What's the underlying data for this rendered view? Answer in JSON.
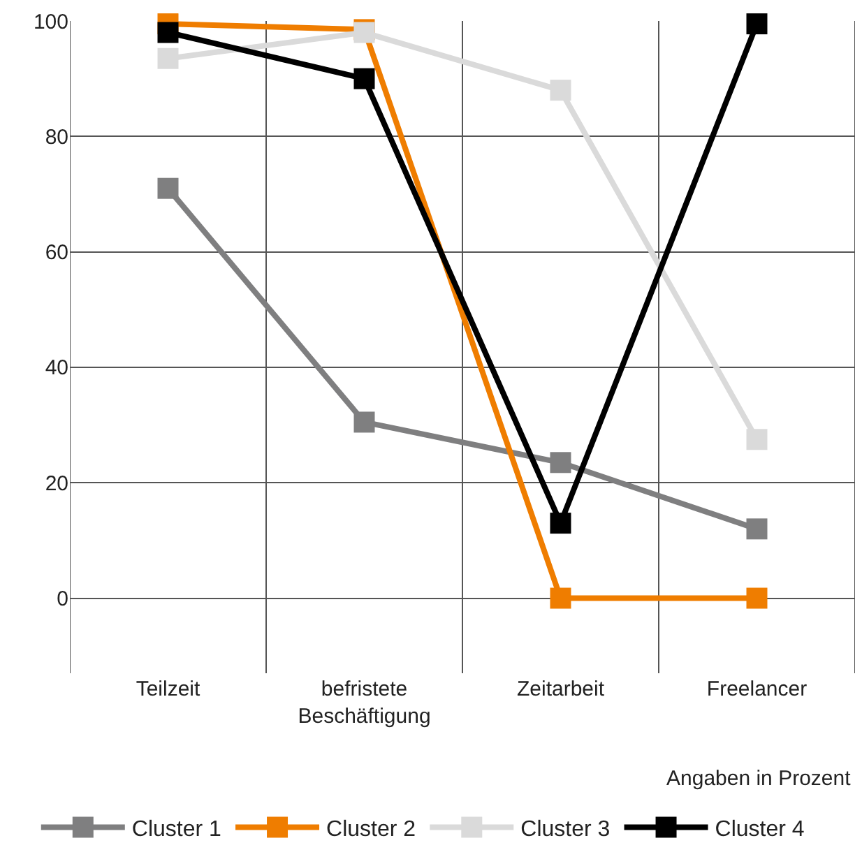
{
  "chart_data": {
    "type": "line",
    "categories": [
      "Teilzeit",
      "befristete\nBeschäftigung",
      "Zeitarbeit",
      "Freelancer"
    ],
    "series": [
      {
        "name": "Cluster 1",
        "color": "#7f7f80",
        "values": [
          71,
          30.5,
          23.5,
          12
        ]
      },
      {
        "name": "Cluster 2",
        "color": "#ef7d00",
        "values": [
          99.5,
          98.5,
          0,
          0
        ]
      },
      {
        "name": "Cluster 3",
        "color": "#dadada",
        "values": [
          93.5,
          98,
          88,
          27.5
        ]
      },
      {
        "name": "Cluster 4",
        "color": "#000000",
        "values": [
          98,
          90,
          13,
          99.5
        ]
      }
    ],
    "ylim": [
      -13,
      100
    ],
    "yticks": [
      0,
      20,
      40,
      60,
      80,
      100
    ],
    "grid": true,
    "legend": "bottom",
    "marker": "square",
    "line_style": "solid",
    "annotations": [
      "Angaben in Prozent"
    ]
  }
}
